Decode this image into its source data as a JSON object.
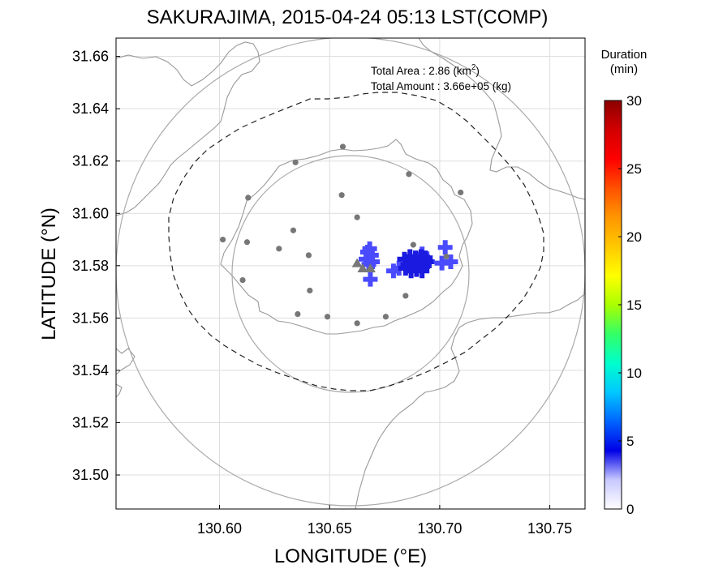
{
  "chart_data": {
    "type": "scatter",
    "title": "SAKURAJIMA, 2015-04-24 05:13 LST(COMP)",
    "xlabel": "LONGITUDE (°E)",
    "ylabel": "LATITUDE (°N)",
    "xlim": [
      130.553,
      130.766
    ],
    "ylim": [
      31.487,
      31.667
    ],
    "xticks": [
      130.6,
      130.65,
      130.7,
      130.75
    ],
    "xtick_labels": [
      "130.60",
      "130.65",
      "130.70",
      "130.75"
    ],
    "yticks": [
      31.5,
      31.52,
      31.54,
      31.56,
      31.58,
      31.6,
      31.62,
      31.64,
      31.66
    ],
    "ytick_labels": [
      "31.50",
      "31.52",
      "31.54",
      "31.56",
      "31.58",
      "31.60",
      "31.62",
      "31.64",
      "31.66"
    ],
    "grid": true,
    "annotations": {
      "area_label": "Total Area   : 2.86 (km",
      "area_sup": "2",
      "area_close": ")",
      "amount_label": "Total Amount : 3.66e+05 (kg)"
    },
    "colorbar": {
      "title_line1": "Duration",
      "title_line2": "(min)",
      "min": 0,
      "max": 30,
      "ticks": [
        0,
        5,
        10,
        15,
        20,
        25,
        30
      ],
      "tick_labels": [
        "0",
        "5",
        "10",
        "15",
        "20",
        "25",
        "30"
      ],
      "stops": [
        "#ffffff",
        "#c8c8ff",
        "#0000e6",
        "#0064ff",
        "#00c8ff",
        "#00ffcc",
        "#33ff66",
        "#aaff00",
        "#ffff00",
        "#ffc800",
        "#ff9600",
        "#ff5000",
        "#ff0000",
        "#d20000",
        "#8c0000"
      ]
    },
    "colors": {
      "ashfall": "#4a4aff",
      "ashfall_dense": "#1a1ae0",
      "stations": "#777777",
      "coast": "#999999",
      "range_ring": "#aaaaaa",
      "boundary": "#222222"
    },
    "vents": [
      {
        "lon": 130.6625,
        "lat": 31.581
      },
      {
        "lon": 130.665,
        "lat": 31.579
      },
      {
        "lon": 130.6685,
        "lat": 31.579
      }
    ],
    "stations": [
      {
        "lon": 130.656,
        "lat": 31.6255
      },
      {
        "lon": 130.6345,
        "lat": 31.6195
      },
      {
        "lon": 130.686,
        "lat": 31.615
      },
      {
        "lon": 130.613,
        "lat": 31.606
      },
      {
        "lon": 130.6555,
        "lat": 31.607
      },
      {
        "lon": 130.7095,
        "lat": 31.608
      },
      {
        "lon": 130.6625,
        "lat": 31.5985
      },
      {
        "lon": 130.6335,
        "lat": 31.5935
      },
      {
        "lon": 130.6015,
        "lat": 31.59
      },
      {
        "lon": 130.6125,
        "lat": 31.589
      },
      {
        "lon": 130.627,
        "lat": 31.5865
      },
      {
        "lon": 130.6405,
        "lat": 31.584
      },
      {
        "lon": 130.688,
        "lat": 31.588
      },
      {
        "lon": 130.703,
        "lat": 31.5835
      },
      {
        "lon": 130.6105,
        "lat": 31.5745
      },
      {
        "lon": 130.641,
        "lat": 31.5705
      },
      {
        "lon": 130.6845,
        "lat": 31.5685
      },
      {
        "lon": 130.6355,
        "lat": 31.5615
      },
      {
        "lon": 130.649,
        "lat": 31.5605
      },
      {
        "lon": 130.6755,
        "lat": 31.5605
      },
      {
        "lon": 130.6625,
        "lat": 31.558
      }
    ],
    "ash_points": [
      {
        "lon": 130.6672,
        "lat": 31.5852
      },
      {
        "lon": 130.6682,
        "lat": 31.5865
      },
      {
        "lon": 130.669,
        "lat": 31.584
      },
      {
        "lon": 130.6665,
        "lat": 31.5825
      },
      {
        "lon": 130.6695,
        "lat": 31.5815
      },
      {
        "lon": 130.6678,
        "lat": 31.5805
      },
      {
        "lon": 130.6685,
        "lat": 31.5748
      },
      {
        "lon": 130.679,
        "lat": 31.578
      },
      {
        "lon": 130.6815,
        "lat": 31.579
      },
      {
        "lon": 130.692,
        "lat": 31.5845
      },
      {
        "lon": 130.6945,
        "lat": 31.5815
      },
      {
        "lon": 130.7025,
        "lat": 31.587
      },
      {
        "lon": 130.701,
        "lat": 31.581
      },
      {
        "lon": 130.705,
        "lat": 31.5815
      }
    ],
    "ash_dense": [
      {
        "lon": 130.684,
        "lat": 31.5825
      },
      {
        "lon": 130.6865,
        "lat": 31.5835
      },
      {
        "lon": 130.689,
        "lat": 31.583
      },
      {
        "lon": 130.6915,
        "lat": 31.5835
      },
      {
        "lon": 130.6935,
        "lat": 31.583
      },
      {
        "lon": 130.6855,
        "lat": 31.5805
      },
      {
        "lon": 130.688,
        "lat": 31.58
      },
      {
        "lon": 130.6905,
        "lat": 31.5805
      },
      {
        "lon": 130.693,
        "lat": 31.58
      },
      {
        "lon": 130.687,
        "lat": 31.578
      },
      {
        "lon": 130.6895,
        "lat": 31.5785
      },
      {
        "lon": 130.692,
        "lat": 31.578
      },
      {
        "lon": 130.6845,
        "lat": 31.579
      },
      {
        "lon": 130.694,
        "lat": 31.5815
      }
    ]
  }
}
